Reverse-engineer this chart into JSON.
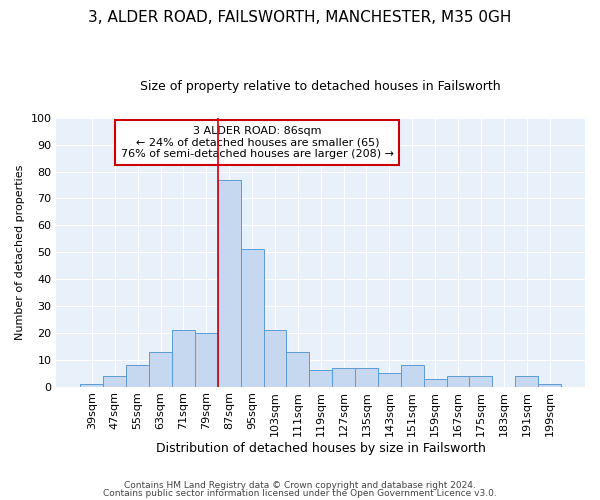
{
  "title1": "3, ALDER ROAD, FAILSWORTH, MANCHESTER, M35 0GH",
  "title2": "Size of property relative to detached houses in Failsworth",
  "xlabel": "Distribution of detached houses by size in Failsworth",
  "ylabel": "Number of detached properties",
  "footer1": "Contains HM Land Registry data © Crown copyright and database right 2024.",
  "footer2": "Contains public sector information licensed under the Open Government Licence v3.0.",
  "bins": [
    "39sqm",
    "47sqm",
    "55sqm",
    "63sqm",
    "71sqm",
    "79sqm",
    "87sqm",
    "95sqm",
    "103sqm",
    "111sqm",
    "119sqm",
    "127sqm",
    "135sqm",
    "143sqm",
    "151sqm",
    "159sqm",
    "167sqm",
    "175sqm",
    "183sqm",
    "191sqm",
    "199sqm"
  ],
  "values": [
    1,
    4,
    8,
    13,
    21,
    20,
    77,
    51,
    21,
    13,
    6,
    7,
    7,
    5,
    8,
    3,
    4,
    4,
    0,
    4,
    1
  ],
  "bar_color": "#c5d8f0",
  "bar_edge_color": "#5b9bd5",
  "vline_color": "#cc0000",
  "vline_bin_index": 6,
  "annotation_line1": "3 ALDER ROAD: 86sqm",
  "annotation_line2": "← 24% of detached houses are smaller (65)",
  "annotation_line3": "76% of semi-detached houses are larger (208) →",
  "annotation_box_color": "#ffffff",
  "annotation_box_edge": "#cc0000",
  "bg_color": "#e8f0fa",
  "grid_color": "#ffffff",
  "fig_bg_color": "#ffffff",
  "ylim": [
    0,
    100
  ],
  "yticks": [
    0,
    10,
    20,
    30,
    40,
    50,
    60,
    70,
    80,
    90,
    100
  ],
  "title1_fontsize": 11,
  "title2_fontsize": 9,
  "ylabel_fontsize": 8,
  "xlabel_fontsize": 9,
  "tick_fontsize": 8,
  "annot_fontsize": 8,
  "footer_fontsize": 6.5
}
